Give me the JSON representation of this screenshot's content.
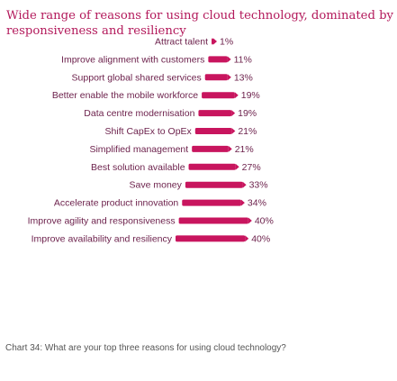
{
  "title": "Wide range of reasons for using cloud technology, dominated by responsiveness and resiliency",
  "caption": "Chart 34: What are your top three reasons for using cloud technology?",
  "colors": {
    "title": "#b3195b",
    "bar": "#c8155e",
    "label": "#6b1f4a"
  },
  "chart_data": {
    "type": "bar",
    "orientation": "horizontal",
    "categories": [
      "Attract talent",
      "Improve alignment with customers",
      "Support global shared services",
      "Better enable the mobile workforce",
      "Data centre modernisation",
      "Shift CapEx to OpEx",
      "Simplified management",
      "Best solution available",
      "Save money",
      "Accelerate product innovation",
      "Improve agility and responsiveness",
      "Improve availability and resiliency"
    ],
    "values": [
      1,
      11,
      13,
      19,
      19,
      21,
      21,
      27,
      33,
      34,
      40,
      40
    ],
    "value_labels": [
      "1%",
      "11%",
      "13%",
      "19%",
      "19%",
      "21%",
      "21%",
      "27%",
      "33%",
      "34%",
      "40%",
      "40%"
    ],
    "unit": "%",
    "title": "Wide range of reasons for using cloud technology, dominated by responsiveness and resiliency",
    "xlabel": "",
    "ylabel": "",
    "xlim": [
      0,
      40
    ],
    "grid": false,
    "legend": "none"
  }
}
